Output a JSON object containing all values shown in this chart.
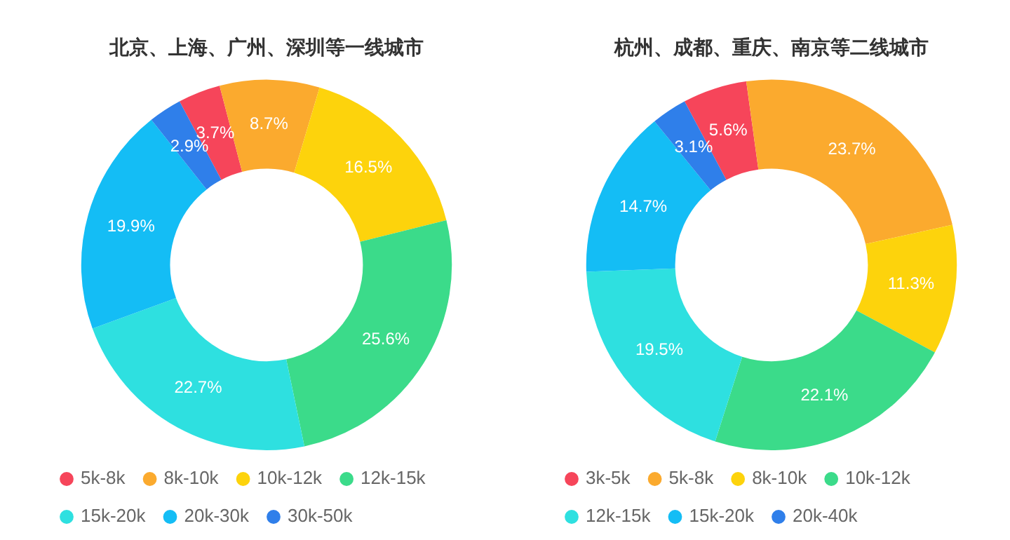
{
  "chart_data": [
    {
      "type": "donut",
      "title": "北京、上海、广州、深圳等一线城市",
      "categories": [
        "5k-8k",
        "8k-10k",
        "10k-12k",
        "12k-15k",
        "15k-20k",
        "20k-30k",
        "30k-50k"
      ],
      "values": [
        3.7,
        8.7,
        16.5,
        25.6,
        22.7,
        19.9,
        2.9
      ],
      "value_labels": [
        "3.7%",
        "8.7%",
        "16.5%",
        "25.6%",
        "22.7%",
        "19.9%",
        "2.9%"
      ],
      "colors": [
        "#f6455a",
        "#fbaa2e",
        "#fdd30c",
        "#3bdb8a",
        "#2ee0e0",
        "#14bdf5",
        "#2f7fea"
      ],
      "legend": "bottom"
    },
    {
      "type": "donut",
      "title": "杭州、成都、重庆、南京等二线城市",
      "categories": [
        "3k-5k",
        "5k-8k",
        "8k-10k",
        "10k-12k",
        "12k-15k",
        "15k-20k",
        "20k-40k"
      ],
      "values": [
        5.6,
        23.7,
        11.3,
        22.1,
        19.5,
        14.7,
        3.1
      ],
      "value_labels": [
        "5.6%",
        "23.7%",
        "11.3%",
        "22.1%",
        "19.5%",
        "14.7%",
        "3.1%"
      ],
      "colors": [
        "#f6455a",
        "#fbaa2e",
        "#fdd30c",
        "#3bdb8a",
        "#2ee0e0",
        "#14bdf5",
        "#2f7fea"
      ],
      "legend": "bottom"
    }
  ]
}
